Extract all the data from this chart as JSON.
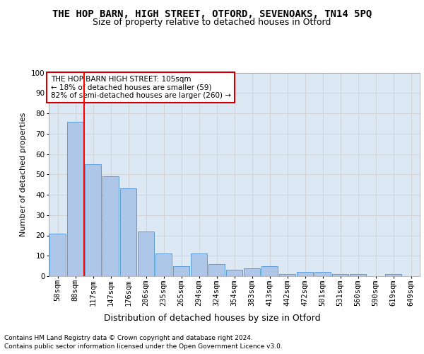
{
  "title": "THE HOP BARN, HIGH STREET, OTFORD, SEVENOAKS, TN14 5PQ",
  "subtitle": "Size of property relative to detached houses in Otford",
  "xlabel": "Distribution of detached houses by size in Otford",
  "ylabel": "Number of detached properties",
  "categories": [
    "58sqm",
    "88sqm",
    "117sqm",
    "147sqm",
    "176sqm",
    "206sqm",
    "235sqm",
    "265sqm",
    "294sqm",
    "324sqm",
    "354sqm",
    "383sqm",
    "413sqm",
    "442sqm",
    "472sqm",
    "501sqm",
    "531sqm",
    "560sqm",
    "590sqm",
    "619sqm",
    "649sqm"
  ],
  "values": [
    21,
    76,
    55,
    49,
    43,
    22,
    11,
    5,
    11,
    6,
    3,
    4,
    5,
    1,
    2,
    2,
    1,
    1,
    0,
    1,
    0
  ],
  "bar_color": "#aec6e8",
  "bar_edge_color": "#5b9bd5",
  "red_line_x": 1.5,
  "annotation_text": "THE HOP BARN HIGH STREET: 105sqm\n← 18% of detached houses are smaller (59)\n82% of semi-detached houses are larger (260) →",
  "annotation_box_color": "#ffffff",
  "annotation_box_edge_color": "#cc0000",
  "grid_color": "#cccccc",
  "axes_bg_color": "#dce9f5",
  "fig_bg_color": "#ffffff",
  "footer_line1": "Contains HM Land Registry data © Crown copyright and database right 2024.",
  "footer_line2": "Contains public sector information licensed under the Open Government Licence v3.0.",
  "ylim": [
    0,
    100
  ],
  "yticks": [
    0,
    10,
    20,
    30,
    40,
    50,
    60,
    70,
    80,
    90,
    100
  ],
  "title_fontsize": 10,
  "subtitle_fontsize": 9,
  "xlabel_fontsize": 9,
  "ylabel_fontsize": 8,
  "tick_fontsize": 7.5,
  "annotation_fontsize": 7.5,
  "footer_fontsize": 6.5
}
